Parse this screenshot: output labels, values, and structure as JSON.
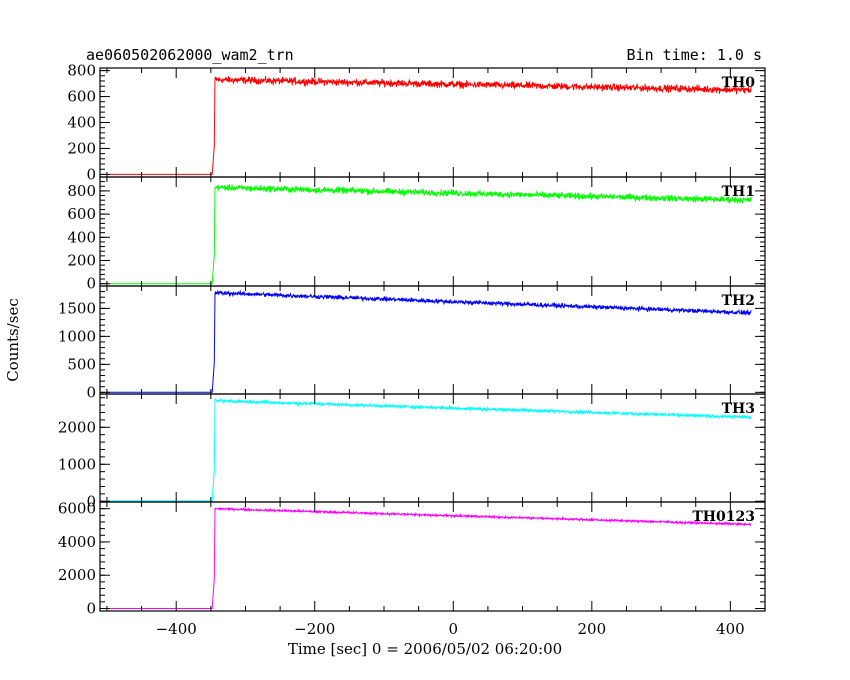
{
  "header": {
    "title": "ae060502062000_wam2_trn",
    "bin_time": "Bin time: 1.0 s"
  },
  "chart_data": {
    "type": "line",
    "xlabel": "Time [sec] 0 = 2006/05/02 06:20:00",
    "ylabel": "Counts/sec",
    "xlim": [
      -510,
      450
    ],
    "x_ticks": [
      -400,
      -200,
      0,
      200,
      400
    ],
    "onset_x": -345,
    "x_end": 430,
    "panels": [
      {
        "name": "TH0",
        "color": "#ff0000",
        "ylim": [
          -20,
          820
        ],
        "y_ticks": [
          0,
          200,
          400,
          600,
          800
        ],
        "pre_level": 0,
        "start_level": 730,
        "end_level": 650,
        "noise": 40
      },
      {
        "name": "TH1",
        "color": "#00ff00",
        "ylim": [
          -20,
          920
        ],
        "y_ticks": [
          0,
          200,
          400,
          600,
          800
        ],
        "pre_level": 0,
        "start_level": 830,
        "end_level": 720,
        "noise": 40
      },
      {
        "name": "TH2",
        "color": "#0000ff",
        "ylim": [
          -30,
          1900
        ],
        "y_ticks": [
          0,
          500,
          1000,
          1500
        ],
        "pre_level": 0,
        "start_level": 1780,
        "end_level": 1420,
        "noise": 55
      },
      {
        "name": "TH3",
        "color": "#00ffff",
        "ylim": [
          -20,
          2900
        ],
        "y_ticks": [
          0,
          1000,
          2000
        ],
        "pre_level": 10,
        "start_level": 2720,
        "end_level": 2270,
        "noise": 60
      },
      {
        "name": "TH0123",
        "color": "#ff00ff",
        "ylim": [
          -150,
          6400
        ],
        "y_ticks": [
          0,
          2000,
          4000,
          6000
        ],
        "pre_level": 0,
        "start_level": 6000,
        "end_level": 5050,
        "noise": 90
      }
    ]
  }
}
